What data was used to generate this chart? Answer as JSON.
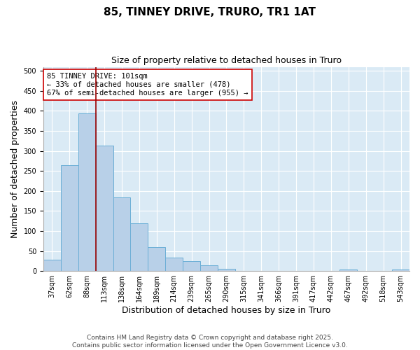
{
  "title": "85, TINNEY DRIVE, TRURO, TR1 1AT",
  "subtitle": "Size of property relative to detached houses in Truro",
  "xlabel": "Distribution of detached houses by size in Truro",
  "ylabel": "Number of detached properties",
  "categories": [
    "37sqm",
    "62sqm",
    "88sqm",
    "113sqm",
    "138sqm",
    "164sqm",
    "189sqm",
    "214sqm",
    "239sqm",
    "265sqm",
    "290sqm",
    "315sqm",
    "341sqm",
    "366sqm",
    "391sqm",
    "417sqm",
    "442sqm",
    "467sqm",
    "492sqm",
    "518sqm",
    "543sqm"
  ],
  "values": [
    28,
    265,
    393,
    313,
    184,
    119,
    60,
    33,
    25,
    14,
    6,
    0,
    0,
    0,
    0,
    0,
    0,
    3,
    0,
    0,
    3
  ],
  "bar_color": "#b8d0e8",
  "bar_edge_color": "#6aaed6",
  "background_color": "#daeaf5",
  "fig_background": "#ffffff",
  "red_line_index": 2,
  "red_line_color": "#990000",
  "annotation_line1": "85 TINNEY DRIVE: 101sqm",
  "annotation_line2": "← 33% of detached houses are smaller (478)",
  "annotation_line3": "67% of semi-detached houses are larger (955) →",
  "annotation_box_color": "#ffffff",
  "annotation_box_edge": "#cc0000",
  "ylim": [
    0,
    510
  ],
  "yticks": [
    0,
    50,
    100,
    150,
    200,
    250,
    300,
    350,
    400,
    450,
    500
  ],
  "footer": "Contains HM Land Registry data © Crown copyright and database right 2025.\nContains public sector information licensed under the Open Government Licence v3.0.",
  "title_fontsize": 11,
  "subtitle_fontsize": 9,
  "axis_label_fontsize": 9,
  "tick_fontsize": 7,
  "annotation_fontsize": 7.5,
  "footer_fontsize": 6.5
}
